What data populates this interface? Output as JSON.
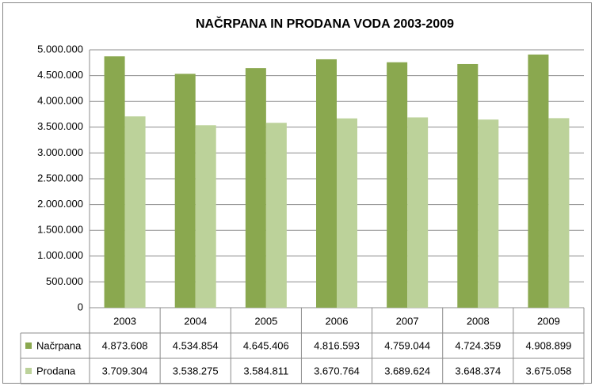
{
  "chart_data": {
    "type": "bar",
    "title": "NAČRPANA IN PRODANA VODA 2003-2009",
    "categories": [
      "2003",
      "2004",
      "2005",
      "2006",
      "2007",
      "2008",
      "2009"
    ],
    "series": [
      {
        "name": "Načrpana",
        "color": "#8aa84f",
        "values": [
          4873608,
          4534854,
          4645406,
          4816593,
          4759044,
          4724359,
          4908899
        ],
        "value_labels": [
          "4.873.608",
          "4.534.854",
          "4.645.406",
          "4.816.593",
          "4.759.044",
          "4.724.359",
          "4.908.899"
        ]
      },
      {
        "name": "Prodana",
        "color": "#bcd29a",
        "values": [
          3709304,
          3538275,
          3584811,
          3670764,
          3689624,
          3648374,
          3675058
        ],
        "value_labels": [
          "3.709.304",
          "3.538.275",
          "3.584.811",
          "3.670.764",
          "3.689.624",
          "3.648.374",
          "3.675.058"
        ]
      }
    ],
    "ylim": [
      0,
      5000000
    ],
    "yticks": [
      0,
      {
        "value": 500000,
        "label": "500.000"
      },
      {
        "value": 1000000,
        "label": "1.000.000"
      },
      {
        "value": 1500000,
        "label": "1.500.000"
      },
      {
        "value": 2000000,
        "label": "2.000.000"
      },
      {
        "value": 2500000,
        "label": "2.500.000"
      },
      {
        "value": 3000000,
        "label": "3.000.000"
      },
      {
        "value": 3500000,
        "label": "3.500.000"
      },
      {
        "value": 4000000,
        "label": "4.000.000"
      },
      {
        "value": 4500000,
        "label": "4.500.000"
      },
      {
        "value": 5000000,
        "label": "5.000.000"
      }
    ],
    "grid": true
  }
}
